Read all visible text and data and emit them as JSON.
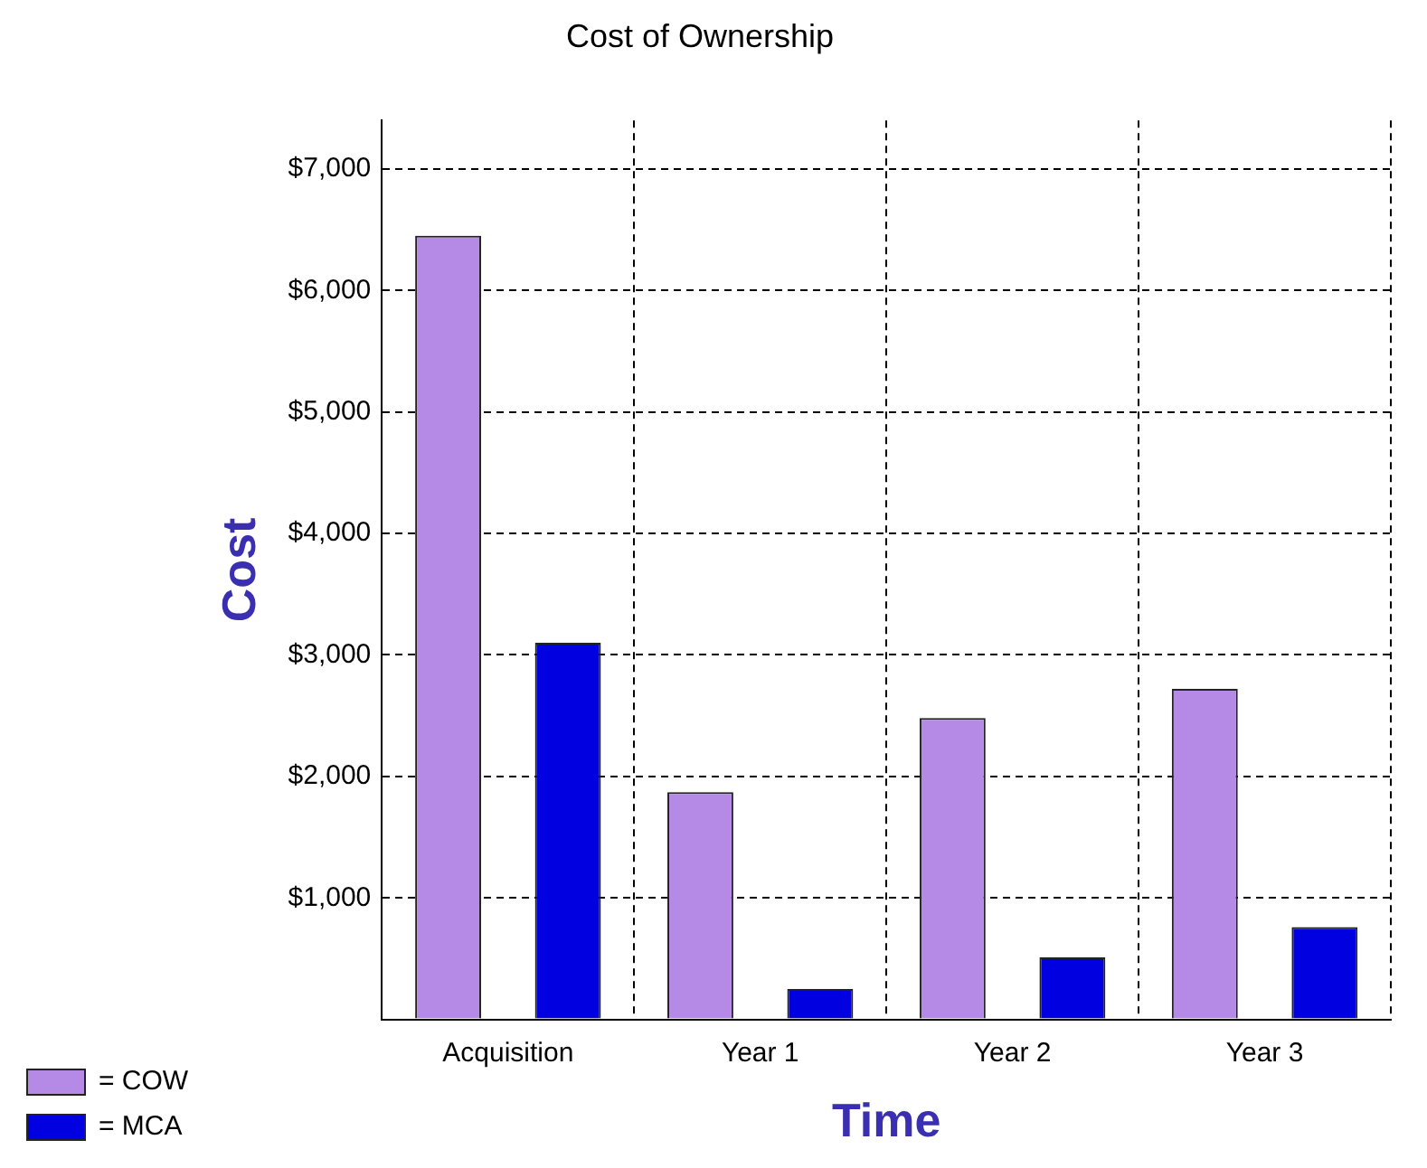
{
  "chart_data": {
    "type": "bar",
    "title": "Cost of Ownership",
    "xlabel": "Time",
    "ylabel": "Cost",
    "categories": [
      "Acquisition",
      "Year 1",
      "Year 2",
      "Year 3"
    ],
    "series": [
      {
        "name": "= COW",
        "color": "#b48ae6",
        "values": [
          6450,
          1870,
          2480,
          2720
        ]
      },
      {
        "name": "= MCA",
        "color": "#0000e0",
        "values": [
          3100,
          250,
          510,
          760
        ]
      }
    ],
    "ylim": [
      0,
      7400
    ],
    "yticks": [
      {
        "value": 0,
        "label": null
      },
      {
        "value": 1000,
        "label": "$1,000"
      },
      {
        "value": 2000,
        "label": "$2,000"
      },
      {
        "value": 3000,
        "label": "$3,000"
      },
      {
        "value": 4000,
        "label": "$4,000"
      },
      {
        "value": 5000,
        "label": "$5,000"
      },
      {
        "value": 6000,
        "label": "$6,000"
      },
      {
        "value": 7000,
        "label": "$7,000"
      }
    ],
    "grid": true,
    "legend": "bottom left"
  }
}
